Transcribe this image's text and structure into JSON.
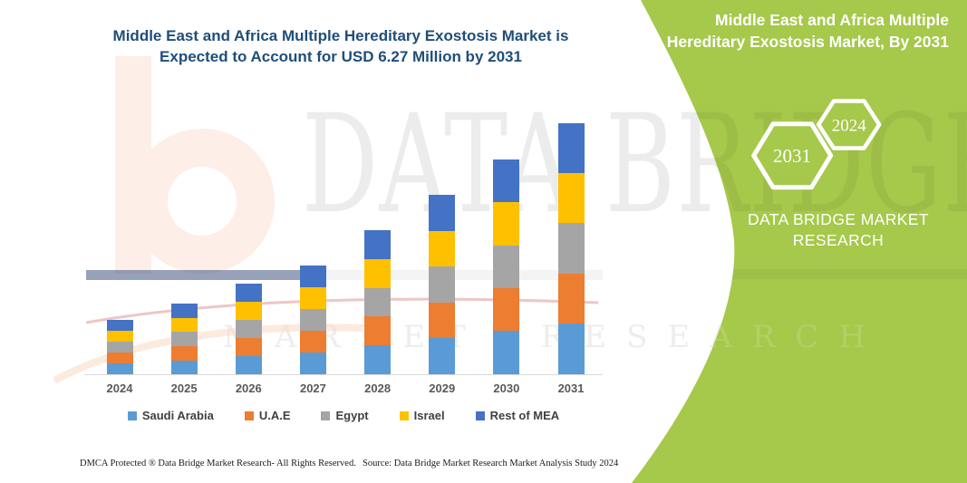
{
  "chart": {
    "title_line1": "Middle East and Africa Multiple Hereditary Exostosis Market is",
    "title_line2": "Expected to Account for USD 6.27 Million by 2031"
  },
  "chart_data": {
    "type": "bar",
    "stacked": true,
    "title": "Middle East and Africa Multiple Hereditary Exostosis Market is Expected to Account for USD 6.27 Million by 2031",
    "unit": "USD Million",
    "categories": [
      "2024",
      "2025",
      "2026",
      "2027",
      "2028",
      "2029",
      "2030",
      "2031"
    ],
    "series": [
      {
        "name": "Saudi Arabia",
        "color": "#5B9BD5",
        "values": [
          0.27,
          0.35,
          0.45,
          0.54,
          0.72,
          0.9,
          1.08,
          1.26
        ]
      },
      {
        "name": "U.A.E",
        "color": "#ED7D31",
        "values": [
          0.27,
          0.35,
          0.45,
          0.54,
          0.72,
          0.89,
          1.07,
          1.25
        ]
      },
      {
        "name": "Egypt",
        "color": "#A5A5A5",
        "values": [
          0.27,
          0.36,
          0.46,
          0.55,
          0.72,
          0.9,
          1.07,
          1.26
        ]
      },
      {
        "name": "Israel",
        "color": "#FFC000",
        "values": [
          0.27,
          0.35,
          0.45,
          0.54,
          0.72,
          0.89,
          1.07,
          1.25
        ]
      },
      {
        "name": "Rest of MEA",
        "color": "#4472C4",
        "values": [
          0.27,
          0.35,
          0.45,
          0.54,
          0.71,
          0.89,
          1.08,
          1.25
        ]
      }
    ],
    "totals": [
      1.35,
      1.76,
      2.26,
      2.71,
      3.59,
      4.47,
      5.37,
      6.27
    ],
    "ylim": [
      0,
      6.3
    ],
    "grid": false,
    "legend_position": "bottom",
    "xlabel": "",
    "ylabel": ""
  },
  "side_panel": {
    "title_line1": "Middle East and Africa Multiple",
    "title_line2": "Hereditary Exostosis Market, By 2031",
    "hexagons": [
      {
        "label": "2031"
      },
      {
        "label": "2024"
      }
    ],
    "brand_line1": "DATA BRIDGE MARKET",
    "brand_line2": "RESEARCH",
    "accent_green": "#a6c84b"
  },
  "watermarks": {
    "big_text": "DATA BRIDGE",
    "row_text": "MARKET RESEARCH"
  },
  "footer": {
    "copyright": "DMCA Protected ® Data Bridge Market Research-  All Rights Reserved.",
    "source": "Source: Data Bridge Market Research  Market Analysis Study 2024"
  }
}
